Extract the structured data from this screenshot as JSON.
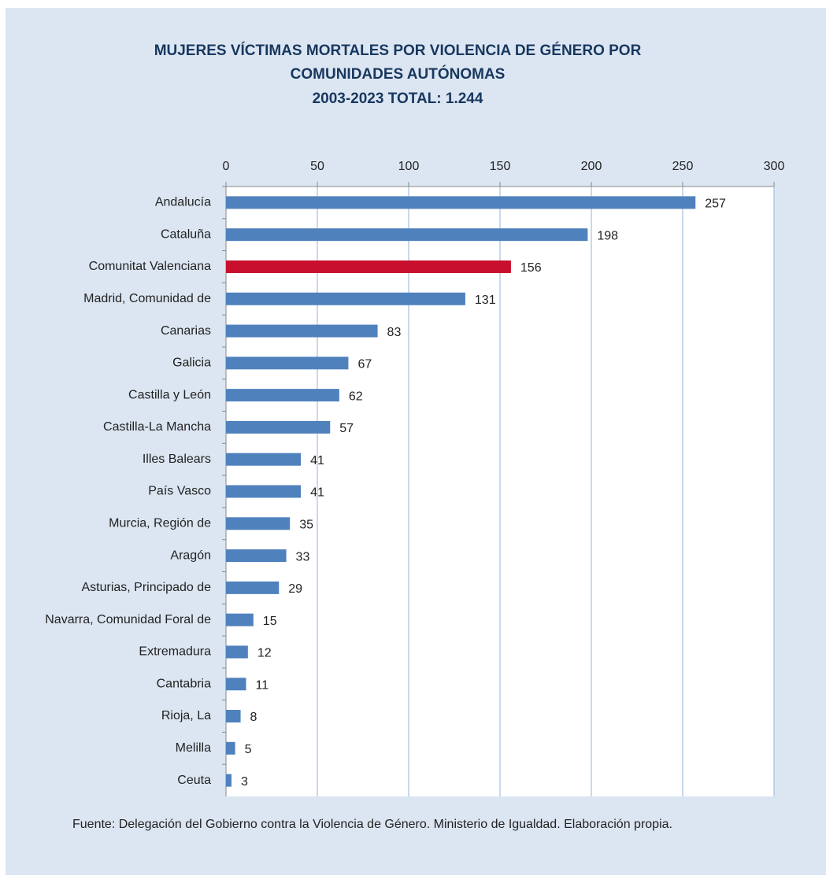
{
  "chart_data": {
    "type": "bar",
    "orientation": "horizontal",
    "title": "MUJERES VÍCTIMAS MORTALES POR VIOLENCIA DE GÉNERO POR COMUNIDADES AUTÓNOMAS",
    "subtitle": "2003-2023 TOTAL: 1.244",
    "categories": [
      "Andalucía",
      "Cataluña",
      "Comunitat Valenciana",
      "Madrid, Comunidad de",
      "Canarias",
      "Galicia",
      "Castilla y León",
      "Castilla-La Mancha",
      "Illes Balears",
      "País Vasco",
      "Murcia, Región de",
      "Aragón",
      "Asturias, Principado de",
      "Navarra, Comunidad Foral de",
      "Extremadura",
      "Cantabria",
      "Rioja, La",
      "Melilla",
      "Ceuta"
    ],
    "values": [
      257,
      198,
      156,
      131,
      83,
      67,
      62,
      57,
      41,
      41,
      35,
      33,
      29,
      15,
      12,
      11,
      8,
      5,
      3
    ],
    "colors": [
      "#4f81bd",
      "#4f81bd",
      "#c8102e",
      "#4f81bd",
      "#4f81bd",
      "#4f81bd",
      "#4f81bd",
      "#4f81bd",
      "#4f81bd",
      "#4f81bd",
      "#4f81bd",
      "#4f81bd",
      "#4f81bd",
      "#4f81bd",
      "#4f81bd",
      "#4f81bd",
      "#4f81bd",
      "#4f81bd",
      "#4f81bd"
    ],
    "xlim": [
      0,
      300
    ],
    "xticks": [
      0,
      50,
      100,
      150,
      200,
      250,
      300
    ],
    "grid": true,
    "source": "Fuente: Delegación del Gobierno contra la Violencia de Género. Ministerio de Igualdad. Elaboración propia."
  }
}
